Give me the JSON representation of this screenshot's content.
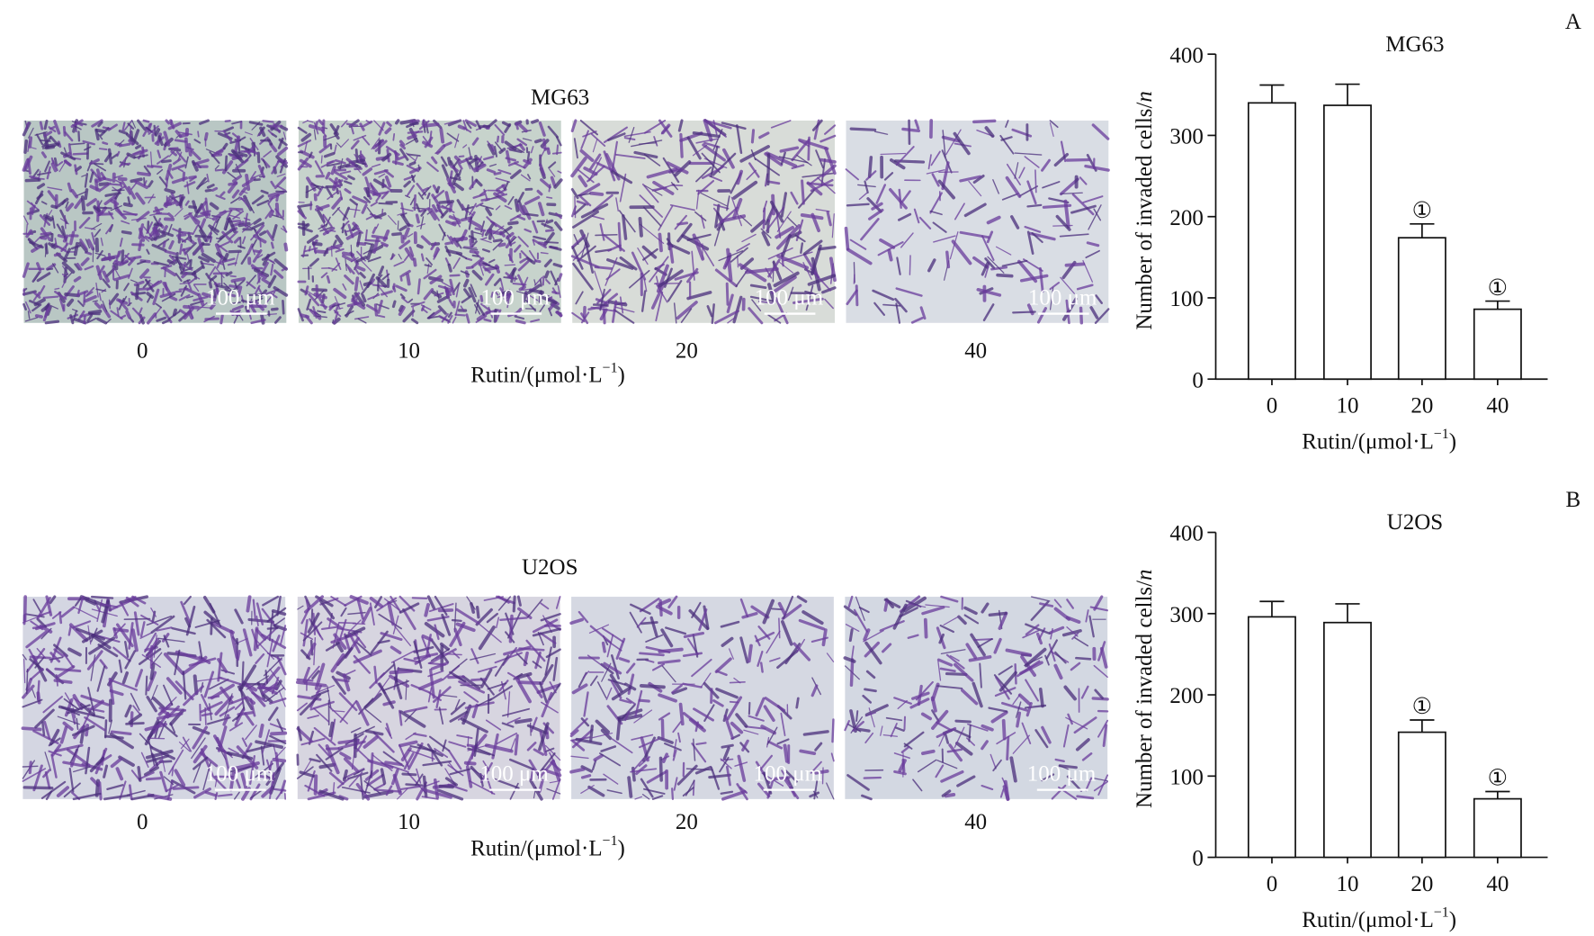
{
  "chart_data": [
    {
      "type": "bar",
      "panel_label": "A",
      "title": "MG63",
      "categories": [
        "0",
        "10",
        "20",
        "40"
      ],
      "values": [
        340,
        337,
        174,
        86
      ],
      "errors": [
        22,
        26,
        17,
        10
      ],
      "value_annotations": [
        null,
        null,
        "①",
        "①"
      ],
      "ylabel": [
        "Number of invaded cells/",
        "n"
      ],
      "xlabel": [
        "Rutin/(μmol·L",
        "−1",
        ")"
      ],
      "ylim": [
        0,
        400
      ],
      "yticks": [
        0,
        100,
        200,
        300,
        400
      ],
      "color": "#ffffff"
    },
    {
      "type": "bar",
      "panel_label": "B",
      "title": "U2OS",
      "categories": [
        "0",
        "10",
        "20",
        "40"
      ],
      "values": [
        296,
        289,
        154,
        72
      ],
      "errors": [
        19,
        23,
        15,
        9
      ],
      "value_annotations": [
        null,
        null,
        "①",
        "①"
      ],
      "ylabel": [
        "Number of invaded cells/",
        "n"
      ],
      "xlabel": [
        "Rutin/(μmol·L",
        "−1",
        ")"
      ],
      "ylim": [
        0,
        400
      ],
      "yticks": [
        0,
        100,
        200,
        300,
        400
      ],
      "color": "#ffffff"
    }
  ],
  "micrographs": [
    {
      "title": "MG63",
      "labels": [
        "0",
        "10",
        "20",
        "40"
      ],
      "scale_bar": "100 μm",
      "xlabel": [
        "Rutin/(μmol·L",
        "−1",
        ")"
      ]
    },
    {
      "title": "U2OS",
      "labels": [
        "0",
        "10",
        "20",
        "40"
      ],
      "scale_bar": "100 μm",
      "xlabel": [
        "Rutin/(μmol·L",
        "−1",
        ")"
      ]
    }
  ]
}
